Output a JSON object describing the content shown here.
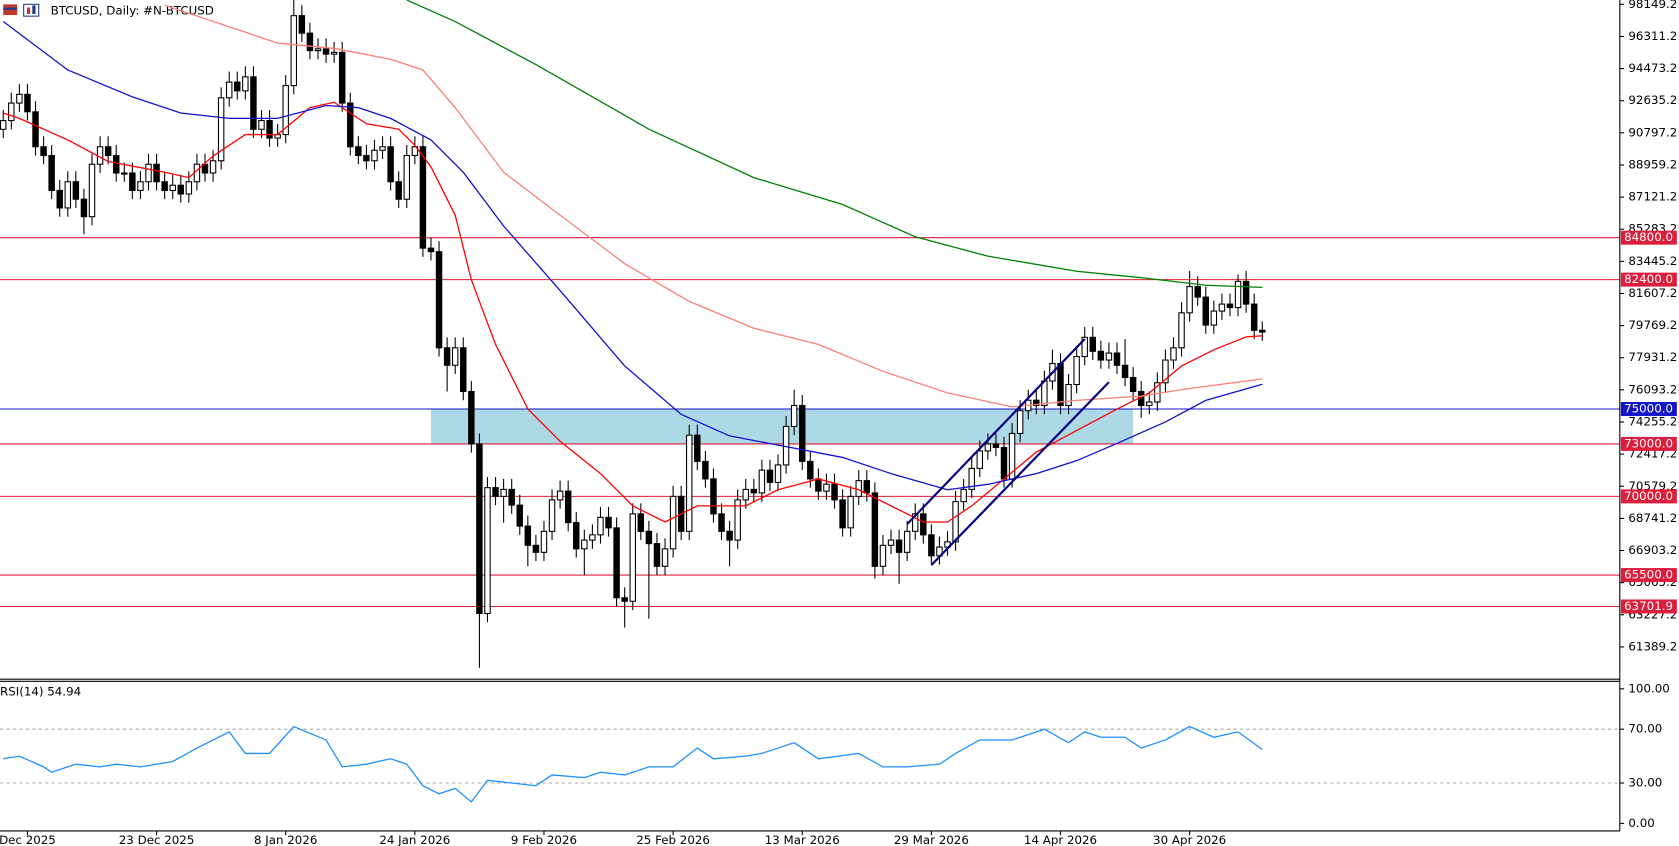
{
  "chart_data": [
    {
      "type": "candlestick",
      "title": "BTCUSD, Daily:  #N-BTCUSD",
      "open": [
        91000,
        91500,
        92500,
        93000,
        92000,
        90000,
        89500,
        87500,
        86500,
        88000,
        87000,
        86000,
        89000,
        90000,
        89500,
        88500,
        88500,
        87500,
        88000,
        89000,
        88000,
        87500,
        87800,
        87300,
        88000,
        89000,
        88500,
        89200,
        92800,
        93700,
        93200,
        94000,
        91000,
        91500,
        90500,
        90700,
        93500,
        97500,
        96500,
        95500,
        95600,
        95300,
        95400,
        92500,
        90000,
        89500,
        89200,
        89800,
        90000,
        88000,
        87000,
        89500,
        90000,
        84200,
        84000,
        78500,
        77500,
        78500,
        76000,
        73000,
        63300,
        70500,
        70000,
        70400,
        69500,
        68300,
        67200,
        66800,
        68000,
        69800,
        70300,
        68500,
        67000,
        67500,
        67800,
        68800,
        68200,
        64200,
        64000,
        69000,
        68000,
        67300,
        66000,
        67000,
        70000,
        68000,
        73500,
        72000,
        71000,
        69000,
        68000,
        67500,
        69800,
        70400,
        70200,
        71500,
        70800,
        71800,
        74000,
        75200,
        72000,
        71000,
        70300,
        70700,
        69800,
        68200,
        70000,
        70900,
        70200,
        66000,
        67200,
        67500,
        66800,
        68000,
        69000,
        67800,
        66600,
        67100,
        67400,
        69700,
        70400,
        71600,
        72600,
        73000,
        72800,
        71000,
        73600,
        74900,
        75500,
        75200,
        76600,
        77600,
        75200,
        76400,
        78000,
        79100,
        78300,
        77800,
        78200,
        77500,
        76800,
        76000,
        75200,
        75400,
        76500,
        77800,
        78500,
        80500,
        82000,
        81400,
        79800,
        80600,
        81000,
        80800,
        82300,
        81000,
        79500
      ],
      "high": [
        92100,
        93100,
        93600,
        93600,
        92600,
        90600,
        90100,
        88100,
        88600,
        88600,
        87600,
        89600,
        90600,
        90600,
        90100,
        89100,
        89100,
        88600,
        89600,
        89600,
        88600,
        88400,
        88400,
        88600,
        89600,
        89600,
        89800,
        93400,
        94300,
        94300,
        94600,
        94600,
        92100,
        92100,
        91300,
        94100,
        98400,
        98100,
        97100,
        96200,
        96200,
        96000,
        96000,
        93100,
        90600,
        90100,
        90400,
        90600,
        90600,
        88600,
        90100,
        90600,
        90600,
        84800,
        84600,
        79100,
        79100,
        79100,
        76600,
        73600,
        71100,
        71100,
        71000,
        71000,
        70100,
        68900,
        67800,
        68600,
        70400,
        70900,
        70900,
        69100,
        68100,
        68400,
        69400,
        69400,
        68800,
        64800,
        69600,
        69600,
        68600,
        67900,
        67600,
        70600,
        70600,
        74100,
        74100,
        72600,
        71600,
        69600,
        68600,
        70400,
        71000,
        71000,
        72100,
        72100,
        72400,
        74600,
        76100,
        75800,
        72600,
        71600,
        71300,
        71300,
        70400,
        70600,
        71500,
        71500,
        70800,
        67800,
        68100,
        68100,
        68600,
        69600,
        69600,
        68400,
        67700,
        68000,
        70300,
        71000,
        72200,
        73200,
        73600,
        73600,
        73400,
        74200,
        75500,
        76100,
        76100,
        77200,
        78400,
        78200,
        77000,
        78600,
        79700,
        79700,
        78900,
        78800,
        78800,
        79000,
        77400,
        76600,
        76000,
        77100,
        78400,
        79100,
        81100,
        82900,
        82600,
        82000,
        81200,
        81600,
        81600,
        82700,
        82900,
        81600,
        80000
      ],
      "low": [
        90500,
        91000,
        92000,
        91500,
        89500,
        89000,
        87000,
        86000,
        86000,
        86500,
        85000,
        85500,
        88500,
        89000,
        88000,
        88000,
        87000,
        87000,
        87500,
        87500,
        87000,
        87000,
        86800,
        86800,
        87500,
        88000,
        88000,
        88700,
        92300,
        92700,
        92700,
        90500,
        90500,
        90000,
        90000,
        90200,
        93000,
        96000,
        95000,
        95000,
        94800,
        94800,
        92000,
        89500,
        89000,
        88700,
        88700,
        89300,
        87500,
        86500,
        86500,
        89000,
        83700,
        83500,
        78000,
        76000,
        77000,
        75500,
        72500,
        60200,
        62800,
        69500,
        68500,
        69000,
        67800,
        66000,
        66300,
        66300,
        67500,
        69300,
        68000,
        66500,
        65500,
        67000,
        67300,
        67700,
        63700,
        62500,
        63500,
        67500,
        63000,
        65500,
        65500,
        66500,
        67500,
        67500,
        71500,
        70500,
        68500,
        67500,
        66000,
        67000,
        69300,
        69700,
        69700,
        70300,
        70300,
        71300,
        73500,
        71500,
        70500,
        69800,
        69800,
        69300,
        67700,
        67700,
        69500,
        69700,
        65300,
        65500,
        66700,
        65000,
        66300,
        67500,
        67300,
        66100,
        66100,
        66600,
        66900,
        69200,
        69900,
        71100,
        72100,
        72300,
        70500,
        70500,
        73100,
        74400,
        74700,
        74700,
        76100,
        74700,
        74700,
        75900,
        77500,
        77800,
        77300,
        77300,
        77000,
        76300,
        75500,
        74500,
        74700,
        74900,
        76000,
        77300,
        78000,
        80000,
        80900,
        79300,
        79300,
        80100,
        80300,
        80300,
        80500,
        79000,
        78900
      ],
      "close": [
        91500,
        92500,
        93000,
        92000,
        90000,
        89500,
        87500,
        86500,
        88000,
        87000,
        86000,
        89000,
        90000,
        89500,
        88500,
        88500,
        87500,
        88000,
        89000,
        88000,
        87500,
        87800,
        87300,
        88000,
        89000,
        88500,
        89200,
        92800,
        93700,
        93200,
        94000,
        91000,
        91500,
        90500,
        90700,
        93500,
        97500,
        96500,
        95500,
        95600,
        95300,
        95400,
        92500,
        90000,
        89500,
        89200,
        89800,
        90000,
        88000,
        87000,
        89500,
        90000,
        84200,
        84000,
        78500,
        77500,
        78500,
        76000,
        73000,
        63300,
        70500,
        70000,
        70400,
        69500,
        68300,
        67200,
        66800,
        68000,
        69800,
        70300,
        68500,
        67000,
        67500,
        67800,
        68800,
        68200,
        64200,
        64000,
        69000,
        68000,
        67300,
        66000,
        67000,
        70000,
        68000,
        73500,
        72000,
        71000,
        69000,
        68000,
        67500,
        69800,
        70400,
        70200,
        71500,
        70800,
        71800,
        74000,
        75200,
        72000,
        71000,
        70300,
        70700,
        69800,
        68200,
        70000,
        70900,
        70200,
        66000,
        67200,
        67500,
        66800,
        68000,
        69000,
        67800,
        66600,
        67100,
        67400,
        69700,
        70400,
        71600,
        72600,
        73000,
        72800,
        71000,
        73600,
        74900,
        75500,
        75200,
        76600,
        77600,
        75200,
        76400,
        78000,
        79100,
        78300,
        77800,
        78200,
        77500,
        76800,
        76000,
        75200,
        75400,
        76500,
        77800,
        78500,
        80500,
        82000,
        81400,
        79800,
        80600,
        81000,
        80800,
        82300,
        81000,
        79500,
        79400
      ],
      "up_color": "#ffffff",
      "down_color": "#000000",
      "xlim": [
        -0.4,
        200.3
      ],
      "xticks": [
        {
          "value": 3,
          "label": "Dec 2025"
        },
        {
          "value": 19,
          "label": "23 Dec 2025"
        },
        {
          "value": 35,
          "label": "8 Jan 2026"
        },
        {
          "value": 51,
          "label": "24 Jan 2026"
        },
        {
          "value": 67,
          "label": "9 Feb 2026"
        },
        {
          "value": 83,
          "label": "25 Feb 2026"
        },
        {
          "value": 99,
          "label": "13 Mar 2026"
        },
        {
          "value": 115,
          "label": "29 Mar 2026"
        },
        {
          "value": 131,
          "label": "14 Apr 2026"
        },
        {
          "value": 147,
          "label": "30 Apr 2026"
        }
      ],
      "ylim": [
        59606,
        98395
      ],
      "yticks": [
        98149.2,
        96311.2,
        94473.2,
        92635.2,
        90797.2,
        88959.2,
        87121.2,
        85283.2,
        83445.2,
        81607.2,
        79769.2,
        77931.2,
        76093.2,
        74255.2,
        72417.2,
        70579.2,
        68741.2,
        66903.2,
        65065.2,
        63227.2,
        61389.2
      ],
      "overlays": [
        {
          "color": "#ff0000",
          "x": [
            0,
            2,
            8,
            13,
            20,
            23,
            26,
            30,
            34,
            38,
            41,
            45,
            49,
            51,
            53,
            56,
            58,
            61,
            65,
            69,
            74,
            78,
            82,
            86,
            92,
            96,
            101,
            106,
            110,
            114,
            117,
            120,
            124,
            128,
            133,
            138,
            142,
            146,
            150,
            154,
            156
          ],
          "values": [
            91930,
            91623,
            90392,
            89160,
            88544,
            88236,
            89468,
            90699,
            90699,
            92238,
            92546,
            91315,
            91007,
            90084,
            88852,
            86081,
            82387,
            78693,
            74998,
            73151,
            71304,
            69457,
            68534,
            69457,
            69457,
            70380,
            70996,
            70380,
            69457,
            68534,
            68534,
            69457,
            70996,
            72535,
            73767,
            74998,
            75922,
            77462,
            78385,
            79124,
            79185
          ]
        },
        {
          "color": "#fa8072",
          "x": [
            20,
            34,
            41,
            48,
            52,
            56,
            62,
            69,
            77,
            85,
            93,
            101,
            109,
            117,
            125,
            133,
            141,
            146,
            156
          ],
          "values": [
            98100,
            95933,
            95625,
            95009,
            94394,
            92238,
            88544,
            86081,
            83311,
            81156,
            79617,
            78693,
            77154,
            75922,
            75121,
            75491,
            75737,
            76106,
            76722
          ]
        },
        {
          "color": "#1010d0",
          "x": [
            0,
            8,
            16,
            22,
            28,
            34,
            40,
            44,
            48,
            53,
            57,
            62,
            69,
            77,
            84,
            90,
            97,
            104,
            110,
            117,
            122,
            128,
            133,
            138,
            144,
            149,
            156
          ],
          "values": [
            97164,
            94394,
            92854,
            91930,
            91623,
            91623,
            92361,
            92238,
            91623,
            90392,
            88544,
            85466,
            81772,
            77462,
            74691,
            73459,
            72844,
            72228,
            71304,
            70380,
            70690,
            71304,
            72043,
            73028,
            74259,
            75491,
            76414
          ]
        },
        {
          "color": "#008000",
          "x": [
            50,
            56,
            66,
            80,
            93,
            104,
            113,
            122,
            133,
            141,
            149,
            156
          ],
          "values": [
            98395,
            97164,
            94701,
            91007,
            88236,
            86697,
            84850,
            83742,
            82880,
            82511,
            82080,
            81957
          ]
        }
      ],
      "levels": [
        {
          "value": 84800,
          "label": "84800.0",
          "color": "#dc1e3c"
        },
        {
          "value": 82400,
          "label": "82400.0",
          "color": "#dc1e3c"
        },
        {
          "value": 75000,
          "label": "75000.0",
          "color": "#1414c8"
        },
        {
          "value": 73000,
          "label": "73000.0",
          "color": "#dc1e3c"
        },
        {
          "value": 70000,
          "label": "70000.0",
          "color": "#dc1e3c"
        },
        {
          "value": 65500,
          "label": "65500.0",
          "color": "#dc1e3c"
        },
        {
          "value": 63701.9,
          "label": "63701.9",
          "color": "#dc1e3c"
        }
      ],
      "zone": {
        "x": [
          53,
          140
        ],
        "y": [
          73000,
          75000
        ],
        "color": "#add8e6"
      },
      "channels": {
        "color": "#000080",
        "lines": [
          {
            "x": [
              115,
              137
            ],
            "y": [
              66071,
              76538
            ]
          },
          {
            "x": [
              112,
              134
            ],
            "y": [
              68411,
              79001
            ]
          }
        ]
      }
    },
    {
      "type": "line",
      "title": "RSI(14) 54.94",
      "color": "#1e90ff",
      "x": [
        0,
        2,
        5,
        6,
        9,
        12,
        14,
        17,
        21,
        24,
        28,
        30,
        33,
        36,
        40,
        42,
        45,
        48,
        50,
        52,
        54,
        56,
        58,
        60,
        63,
        66,
        68,
        72,
        74,
        77,
        80,
        83,
        86,
        88,
        92,
        94,
        98,
        101,
        106,
        109,
        112,
        116,
        118,
        121,
        125,
        129,
        132,
        134,
        136,
        139,
        141,
        144,
        147,
        150,
        153,
        156
      ],
      "values": [
        48,
        50,
        42,
        38,
        44,
        42,
        44,
        42,
        46,
        56,
        68,
        52,
        52,
        72,
        62,
        42,
        44,
        48,
        44,
        28,
        22,
        26,
        16,
        32,
        30,
        28,
        36,
        34,
        38,
        36,
        42,
        42,
        56,
        48,
        50,
        52,
        60,
        48,
        52,
        42,
        42,
        44,
        52,
        62,
        62,
        70,
        60,
        68,
        64,
        64,
        56,
        62,
        72,
        64,
        68,
        54.94
      ],
      "ylim": [
        -5.6,
        105.6
      ],
      "yticks": [
        {
          "value": 100,
          "label": "100.00"
        },
        {
          "value": 70,
          "label": "70.00"
        },
        {
          "value": 30,
          "label": "30.00"
        },
        {
          "value": 0,
          "label": "0.00"
        }
      ],
      "levels": [
        70,
        30
      ]
    }
  ]
}
